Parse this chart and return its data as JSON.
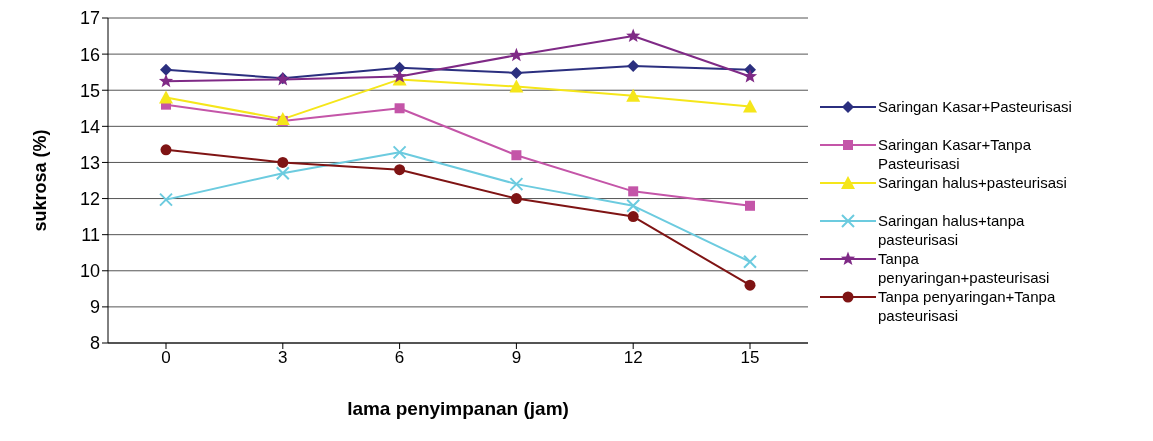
{
  "chart_data": {
    "type": "line",
    "xlabel": "lama penyimpanan (jam)",
    "ylabel": "sukrosa (%)",
    "categories": [
      "0",
      "3",
      "6",
      "9",
      "12",
      "15"
    ],
    "series": [
      {
        "name": "Saringan Kasar+Pasteurisasi",
        "color": "#2b2f7f",
        "marker": "diamond",
        "values": [
          15.57,
          15.33,
          15.62,
          15.48,
          15.67,
          15.57
        ]
      },
      {
        "name": "Saringan Kasar+Tanpa Pasteurisasi",
        "color": "#c455a8",
        "marker": "square",
        "values": [
          14.6,
          14.15,
          14.5,
          13.2,
          12.2,
          11.8
        ]
      },
      {
        "name": "Saringan halus+pasteurisasi",
        "color": "#f5e61a",
        "marker": "triangle",
        "values": [
          14.8,
          14.2,
          15.3,
          15.1,
          14.85,
          14.55
        ]
      },
      {
        "name": "Saringan halus+tanpa pasteurisasi",
        "color": "#6ccbdf",
        "marker": "cross",
        "values": [
          11.97,
          12.7,
          13.28,
          12.4,
          11.8,
          10.25
        ]
      },
      {
        "name": "Tanpa penyaringan+pasteurisasi",
        "color": "#7f2a86",
        "marker": "star",
        "values": [
          15.25,
          15.3,
          15.38,
          15.97,
          16.5,
          15.38
        ]
      },
      {
        "name": "Tanpa penyaringan+Tanpa pasteurisasi",
        "color": "#7f1414",
        "marker": "circle",
        "values": [
          13.35,
          13.0,
          12.8,
          12.0,
          11.5,
          9.6
        ]
      }
    ],
    "ylim": [
      8,
      17
    ],
    "yticks": [
      8,
      9,
      10,
      11,
      12,
      13,
      14,
      15,
      16,
      17
    ],
    "grid": "y",
    "legend": "right"
  }
}
